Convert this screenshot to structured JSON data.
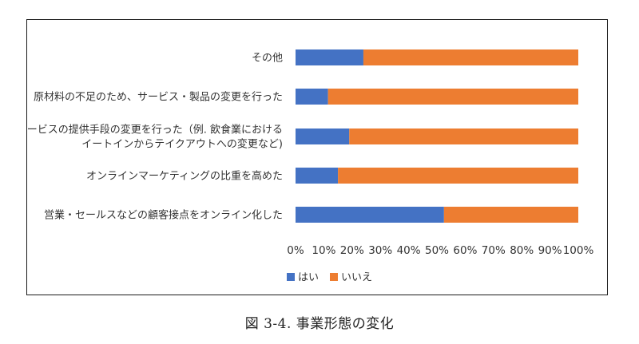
{
  "caption": "図 3-4. 事業形態の変化",
  "chart_data": {
    "type": "bar",
    "orientation": "horizontal",
    "stacked": "percent",
    "categories": [
      [
        "その他"
      ],
      [
        "原材料の不足のため、サービス・製品の変更を行った"
      ],
      [
        "サービスの提供手段の変更を行った（例. 飲食業における",
        "イートインからテイクアウトへの変更など)"
      ],
      [
        "オンラインマーケティングの比重を高めた"
      ],
      [
        "営業・セールスなどの顧客接点をオンライン化した"
      ]
    ],
    "series": [
      {
        "name": "はい",
        "color": "#4472C4",
        "values": [
          24,
          11.5,
          19,
          15,
          52.5
        ]
      },
      {
        "name": "いいえ",
        "color": "#ED7D31",
        "values": [
          76,
          88.5,
          81,
          85,
          47.5
        ]
      }
    ],
    "x_ticks": [
      "0%",
      "10%",
      "20%",
      "30%",
      "40%",
      "50%",
      "60%",
      "70%",
      "80%",
      "90%",
      "100%"
    ],
    "xlim": [
      0,
      100
    ],
    "grid": false,
    "legend_position": "bottom-left"
  }
}
